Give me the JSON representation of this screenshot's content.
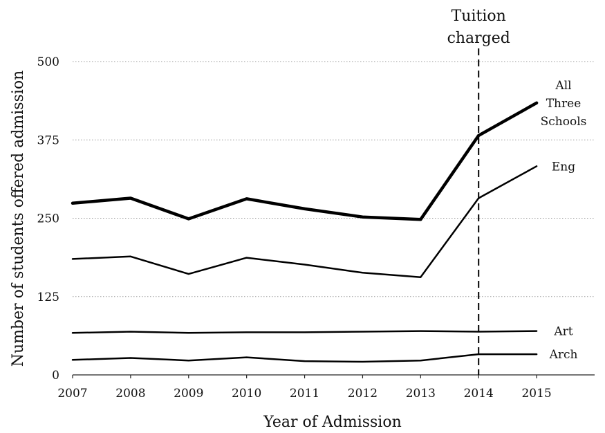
{
  "chart_data": {
    "type": "line",
    "title": "",
    "xlabel": "Year of Admission",
    "ylabel": "Number of students offered admission",
    "x": [
      2007,
      2008,
      2009,
      2010,
      2011,
      2012,
      2013,
      2014,
      2015
    ],
    "ylim": [
      0,
      500
    ],
    "xlim": [
      2007,
      2016
    ],
    "yticks": [
      0,
      125,
      250,
      375,
      500
    ],
    "ytick_labels": [
      "0",
      "125",
      "250",
      "375",
      "500"
    ],
    "xtick_labels": [
      "2007",
      "2008",
      "2009",
      "2010",
      "2011",
      "2012",
      "2013",
      "2014",
      "2015"
    ],
    "grid": "horizontal dotted",
    "series": [
      {
        "name": "All Three Schools",
        "values": [
          274,
          282,
          249,
          281,
          265,
          252,
          248,
          382,
          434
        ],
        "weight": "heavy"
      },
      {
        "name": "Eng",
        "values": [
          185,
          189,
          161,
          187,
          176,
          163,
          156,
          282,
          333
        ],
        "weight": "regular"
      },
      {
        "name": "Art",
        "values": [
          67,
          69,
          67,
          68,
          68,
          69,
          70,
          69,
          70
        ],
        "weight": "regular"
      },
      {
        "name": "Arch",
        "values": [
          24,
          27,
          23,
          28,
          22,
          21,
          23,
          33,
          33
        ],
        "weight": "regular"
      }
    ],
    "label_lines": {
      "All Three Schools": [
        "All",
        "Three",
        "Schools"
      ],
      "Eng": [
        "Eng"
      ],
      "Art": [
        "Art"
      ],
      "Arch": [
        "Arch"
      ]
    },
    "annotations": [
      {
        "x": 2014,
        "style": "vertical dashed line",
        "text_lines": [
          "Tuition",
          "charged"
        ]
      }
    ]
  }
}
